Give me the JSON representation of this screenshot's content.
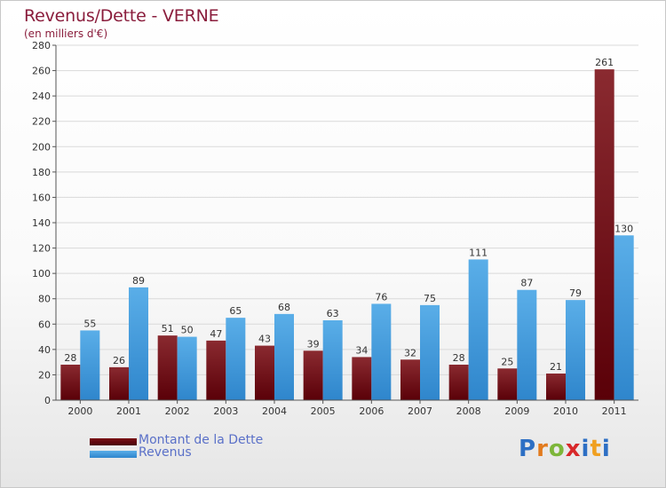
{
  "chart_data": {
    "type": "bar",
    "title": "Revenus/Dette - VERNE",
    "subtitle": "(en milliers d'€)",
    "categories": [
      "2000",
      "2001",
      "2002",
      "2003",
      "2004",
      "2005",
      "2006",
      "2007",
      "2008",
      "2009",
      "2010",
      "2011"
    ],
    "series": [
      {
        "name": "Montant de la Dette",
        "color": "#7a1015",
        "values": [
          28,
          26,
          51,
          47,
          43,
          39,
          34,
          32,
          28,
          25,
          21,
          261
        ]
      },
      {
        "name": "Revenus",
        "color": "#4a9fe0",
        "values": [
          55,
          89,
          50,
          65,
          68,
          63,
          76,
          75,
          111,
          87,
          79,
          130
        ]
      }
    ],
    "ylim": [
      0,
      280
    ],
    "yticks": [
      0,
      20,
      40,
      60,
      80,
      100,
      120,
      140,
      160,
      180,
      200,
      220,
      240,
      260,
      280
    ],
    "grid": true,
    "legend": "bottom-left"
  },
  "legend": {
    "items": [
      {
        "label": "Montant de la Dette",
        "color": "#7a1015"
      },
      {
        "label": "Revenus",
        "color": "#4a9fe0"
      }
    ]
  },
  "logo": {
    "text": "Proxiti",
    "chars": [
      "P",
      "r",
      "o",
      "x",
      "i",
      "t",
      "i"
    ]
  }
}
